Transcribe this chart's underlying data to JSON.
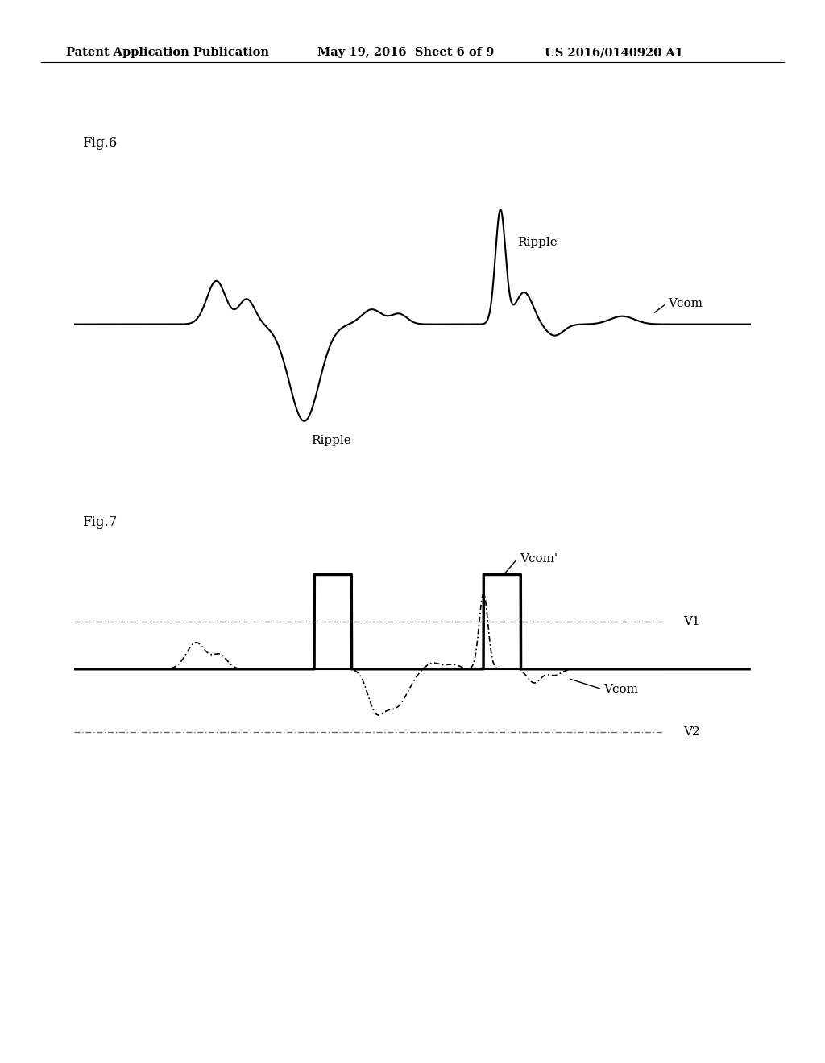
{
  "header_left": "Patent Application Publication",
  "header_mid": "May 19, 2016  Sheet 6 of 9",
  "header_right": "US 2016/0140920 A1",
  "fig6_label": "Fig.6",
  "fig7_label": "Fig.7",
  "bg_color": "#ffffff",
  "line_color": "#000000",
  "dash_color": "#666666"
}
